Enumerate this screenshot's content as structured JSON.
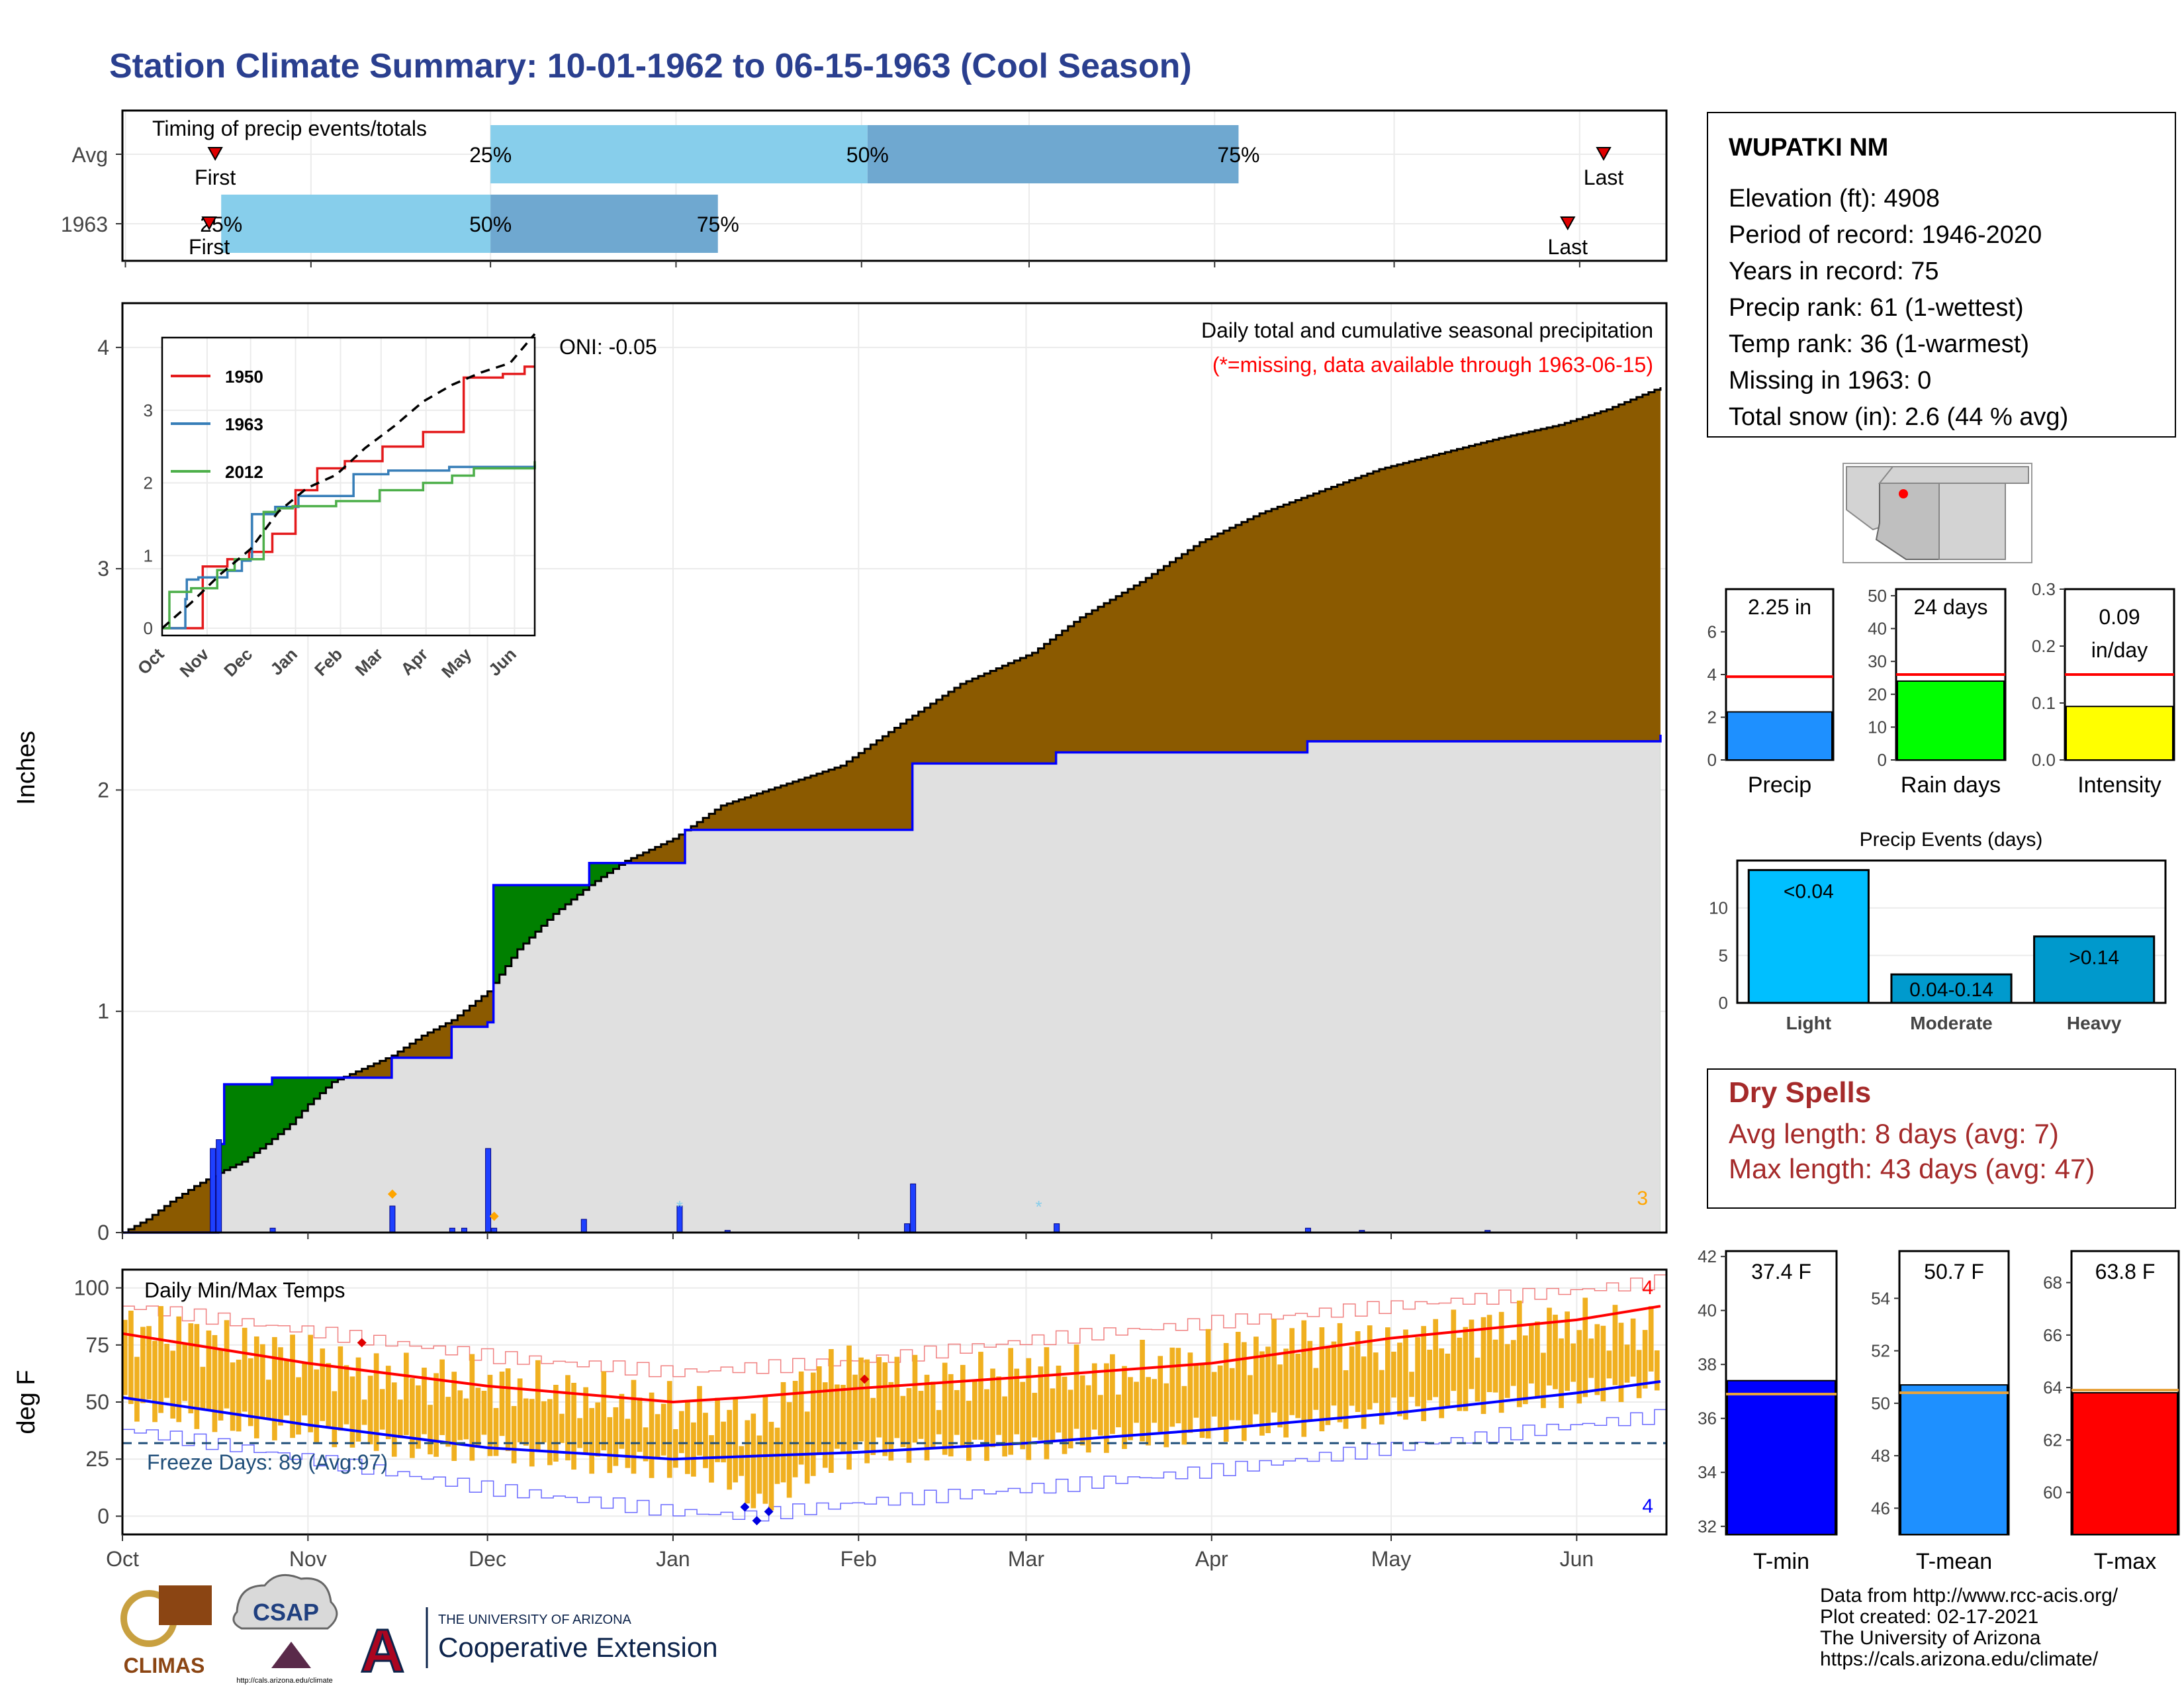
{
  "title": "Station Climate Summary: 10-01-1962 to 06-15-1963 (Cool Season)",
  "colors": {
    "title": "#2a3f8f",
    "cumulative_fill": "#8b5a00",
    "average_fill": "#e0e0e0",
    "above_avg_fill": "#008000",
    "daily_bars": "#1e40ff",
    "temp_bars": "#f0b020",
    "tmax_avg": "#ff0000",
    "tmin_avg": "#0000ff",
    "dry_spell_text": "#a52a2a",
    "missing_note": "#ff0000"
  },
  "station": {
    "name": "WUPATKI NM",
    "lines": [
      "Elevation (ft): 4908",
      "Period of record: 1946-2020",
      "Years in record: 75",
      "Precip rank: 61 (1-wettest)",
      "Temp rank: 36 (1-warmest)",
      "Missing in 1963: 0",
      "Total snow (in): 2.6 (44 % avg)"
    ]
  },
  "dry_spells": {
    "title": "Dry Spells",
    "avg": "Avg length: 8 days (avg: 7)",
    "max": "Max length: 43 days (avg: 47)"
  },
  "footer": {
    "lines": [
      "Data from http://www.rcc-acis.org/",
      "Plot created: 02-17-2021",
      "The University of Arizona",
      "https://cals.arizona.edu/climate/"
    ]
  },
  "logos": {
    "climas": "CLIMAS",
    "csap": "CSAP",
    "csap_url": "http://cals.arizona.edu/climate",
    "ua_small": "THE UNIVERSITY OF ARIZONA",
    "ua_big": "Cooperative Extension",
    "ua_letter": "A"
  },
  "chart_data": [
    {
      "id": "timing",
      "type": "bar",
      "title": "Timing of precip events/totals",
      "rows": [
        {
          "label": "Avg",
          "first": "Oct 16",
          "p25": "Dec 1",
          "p50": "Feb 2",
          "p75": "Apr 5",
          "last": "Jun 5",
          "p25_label": "25%",
          "p50_label": "50%",
          "p75_label": "75%",
          "first_label": "First",
          "last_label": "Last"
        },
        {
          "label": "1963",
          "first": "Oct 15",
          "p25": "Oct 17",
          "p50": "Dec 1",
          "p75": "Jan 8",
          "last": "May 30",
          "p25_label": "25%",
          "p50_label": "50%",
          "p75_label": "75%",
          "first_label": "First",
          "last_label": "Last"
        }
      ]
    },
    {
      "id": "precip",
      "type": "area",
      "title": "Daily total and cumulative seasonal precipitation",
      "subtitle": "(*=missing, data available through 1963-06-15)",
      "oni": "ONI: -0.05",
      "ylabel": "Inches",
      "ylim": [
        0,
        4.2
      ],
      "yticks": [
        0,
        1,
        2,
        3,
        4
      ],
      "xlim": [
        "Oct 1",
        "Jun 15"
      ],
      "months": [
        "Oct",
        "Nov",
        "Dec",
        "Jan",
        "Feb",
        "Mar",
        "Apr",
        "May",
        "Jun"
      ],
      "avg_cumulative": {
        "x": [
          0,
          4,
          8,
          12,
          16,
          20,
          24,
          28,
          31,
          35,
          40,
          45,
          50,
          55,
          61,
          66,
          72,
          78,
          84,
          92,
          100,
          110,
          120,
          130,
          140,
          152,
          160,
          170,
          180,
          190,
          200,
          210,
          220,
          230,
          240,
          248,
          257
        ],
        "y": [
          0,
          0.06,
          0.14,
          0.21,
          0.27,
          0.32,
          0.4,
          0.49,
          0.58,
          0.68,
          0.74,
          0.8,
          0.89,
          0.96,
          1.09,
          1.28,
          1.44,
          1.57,
          1.68,
          1.78,
          1.93,
          2.02,
          2.11,
          2.3,
          2.48,
          2.62,
          2.78,
          2.94,
          3.12,
          3.25,
          3.35,
          3.45,
          3.52,
          3.59,
          3.65,
          3.72,
          3.82
        ]
      },
      "year_cumulative": {
        "x": [
          0,
          15,
          16,
          17,
          25,
          44,
          45,
          55,
          61,
          62,
          77,
          78,
          93,
          94,
          131,
          132,
          155,
          156,
          197,
          198,
          257
        ],
        "y": [
          0,
          0,
          0.4,
          0.67,
          0.7,
          0.7,
          0.79,
          0.93,
          0.95,
          1.57,
          1.57,
          1.67,
          1.67,
          1.82,
          1.82,
          2.12,
          2.12,
          2.17,
          2.17,
          2.22,
          2.25
        ]
      },
      "daily": {
        "x": [
          15,
          16,
          25,
          45,
          55,
          57,
          61,
          62,
          77,
          93,
          101,
          131,
          132,
          156,
          198,
          207,
          228
        ],
        "y": [
          0.38,
          0.42,
          0.02,
          0.12,
          0.02,
          0.02,
          0.38,
          0.02,
          0.06,
          0.12,
          0.01,
          0.04,
          0.22,
          0.04,
          0.02,
          0.01,
          0.01
        ]
      },
      "diamonds_x": [
        45,
        62
      ],
      "stars_x": [
        93,
        153
      ],
      "corner_label": "3",
      "inset": {
        "series": [
          {
            "name": "1950",
            "color": "#e41a1c",
            "x": [
              0,
              18,
              26,
              28,
              45,
              60,
              76,
              92,
              107,
              126,
              152,
              180,
              208,
              235,
              245,
              250,
              257
            ],
            "y": [
              0,
              0,
              0,
              0.85,
              0.95,
              1.05,
              1.3,
              1.9,
              2.2,
              2.3,
              2.5,
              2.7,
              3.45,
              3.5,
              3.5,
              3.6,
              3.6
            ]
          },
          {
            "name": "1963",
            "color": "#377eb8",
            "x": [
              0,
              15,
              16,
              17,
              25,
              44,
              45,
              55,
              61,
              62,
              77,
              78,
              93,
              94,
              131,
              132,
              155,
              156,
              197,
              198,
              257
            ],
            "y": [
              0,
              0,
              0.4,
              0.67,
              0.7,
              0.7,
              0.79,
              0.93,
              0.95,
              1.57,
              1.57,
              1.67,
              1.67,
              1.82,
              1.82,
              2.12,
              2.12,
              2.17,
              2.17,
              2.22,
              2.25
            ]
          },
          {
            "name": "2012",
            "color": "#4daf4a",
            "x": [
              0,
              5,
              10,
              20,
              30,
              38,
              50,
              70,
              80,
              90,
              120,
              150,
              180,
              200,
              215,
              257
            ],
            "y": [
              0,
              0.5,
              0.5,
              0.55,
              0.55,
              0.8,
              0.95,
              1.6,
              1.65,
              1.68,
              1.75,
              1.9,
              2.0,
              2.1,
              2.2,
              2.3
            ]
          }
        ],
        "avg": {
          "x": [
            0,
            20,
            40,
            61,
            80,
            100,
            120,
            140,
            160,
            180,
            200,
            220,
            240,
            257
          ],
          "y": [
            0,
            0.35,
            0.74,
            1.09,
            1.6,
            1.93,
            2.11,
            2.48,
            2.78,
            3.12,
            3.35,
            3.52,
            3.65,
            4.05
          ]
        },
        "ylim": [
          0,
          4
        ],
        "yticks": [
          0,
          1,
          2,
          3
        ],
        "months": [
          "Oct",
          "Nov",
          "Dec",
          "Jan",
          "Feb",
          "Mar",
          "Apr",
          "May",
          "Jun"
        ]
      }
    },
    {
      "id": "temps",
      "type": "bar",
      "title": "Daily Min/Max Temps",
      "ylabel": "deg F",
      "ylim": [
        -8,
        108
      ],
      "yticks": [
        0,
        25,
        50,
        75,
        100
      ],
      "freeze_line": 32,
      "freeze_label": "Freeze Days: 89 (Avg:97)",
      "avg_max": {
        "x": [
          0,
          31,
          61,
          92,
          104,
          123,
          151,
          182,
          212,
          243,
          257
        ],
        "y": [
          80,
          67,
          57,
          50,
          52,
          56,
          61,
          67,
          78,
          86,
          92
        ]
      },
      "avg_min": {
        "x": [
          0,
          31,
          61,
          92,
          123,
          151,
          182,
          212,
          243,
          257
        ],
        "y": [
          52,
          40,
          30,
          25,
          28,
          32,
          38,
          45,
          54,
          59
        ]
      },
      "record_max": {
        "x": [
          0,
          31,
          61,
          92,
          123,
          151,
          182,
          212,
          243,
          257
        ],
        "y": [
          92,
          81,
          70,
          63,
          68,
          77,
          85,
          92,
          99,
          103
        ]
      },
      "record_min": {
        "x": [
          0,
          31,
          61,
          92,
          104,
          123,
          151,
          182,
          212,
          243,
          257
        ],
        "y": [
          38,
          25,
          12,
          2,
          0,
          6,
          12,
          20,
          30,
          40,
          44
        ]
      },
      "tmax_anchors": {
        "x": [
          0,
          10,
          20,
          31,
          40,
          50,
          61,
          70,
          80,
          92,
          100,
          106,
          112,
          118,
          123,
          135,
          151,
          165,
          182,
          195,
          212,
          225,
          243,
          257
        ],
        "y": [
          82,
          80,
          74,
          70,
          62,
          60,
          58,
          55,
          51,
          48,
          45,
          40,
          56,
          64,
          66,
          58,
          64,
          62,
          70,
          77,
          74,
          82,
          84,
          80
        ]
      },
      "tmin_anchors": {
        "x": [
          0,
          10,
          20,
          31,
          40,
          50,
          61,
          70,
          80,
          92,
          100,
          106,
          112,
          118,
          123,
          135,
          151,
          165,
          182,
          195,
          212,
          225,
          243,
          257
        ],
        "y": [
          48,
          45,
          40,
          38,
          34,
          30,
          30,
          27,
          24,
          22,
          20,
          4,
          16,
          24,
          28,
          30,
          30,
          34,
          38,
          40,
          46,
          50,
          54,
          58
        ]
      },
      "corner_top": "4",
      "corner_bottom": "4",
      "months": [
        "Oct",
        "Nov",
        "Dec",
        "Jan",
        "Feb",
        "Mar",
        "Apr",
        "May",
        "Jun"
      ]
    },
    {
      "id": "season_bars",
      "type": "bar",
      "panels": [
        {
          "label": "Precip",
          "value": 2.25,
          "value_label": "2.25 in",
          "avg": 3.9,
          "ylim": [
            0,
            8
          ],
          "yticks": [
            0,
            2,
            4,
            6
          ],
          "color": "#1e90ff"
        },
        {
          "label": "Rain days",
          "value": 24,
          "value_label": "24 days",
          "avg": 26,
          "ylim": [
            0,
            52
          ],
          "yticks": [
            0,
            10,
            20,
            30,
            40,
            50
          ],
          "color": "#00ff00"
        },
        {
          "label": "Intensity",
          "value": 0.094,
          "value_label": "0.09 in/day",
          "avg": 0.15,
          "ylim": [
            0,
            0.3
          ],
          "yticks": [
            0.0,
            0.1,
            0.2,
            0.3
          ],
          "color": "#ffff00"
        }
      ]
    },
    {
      "id": "events",
      "type": "bar",
      "title": "Precip Events (days)",
      "categories": [
        "Light",
        "Moderate",
        "Heavy"
      ],
      "values": [
        14,
        3,
        7
      ],
      "bar_labels": [
        "<0.04",
        "0.04-0.14",
        ">0.14"
      ],
      "ylim": [
        0,
        15
      ],
      "yticks": [
        0,
        5,
        10
      ],
      "colors": [
        "#00bfff",
        "#009acd",
        "#0099cc"
      ]
    },
    {
      "id": "temp_bars",
      "type": "bar",
      "panels": [
        {
          "label": "T-min",
          "value": 37.4,
          "value_label": "37.4 F",
          "avg": 36.9,
          "ylim": [
            31.7,
            42.2
          ],
          "yticks": [
            32,
            34,
            36,
            38,
            40,
            42
          ],
          "color": "#0000ff"
        },
        {
          "label": "T-mean",
          "value": 50.7,
          "value_label": "50.7 F",
          "avg": 50.4,
          "ylim": [
            45,
            55.8
          ],
          "yticks": [
            46,
            48,
            50,
            52,
            54
          ],
          "color": "#1e90ff"
        },
        {
          "label": "T-max",
          "value": 63.8,
          "value_label": "63.8 F",
          "avg": 63.9,
          "ylim": [
            58.4,
            69.2
          ],
          "yticks": [
            60,
            62,
            64,
            66,
            68
          ],
          "color": "#ff0000"
        }
      ]
    }
  ]
}
